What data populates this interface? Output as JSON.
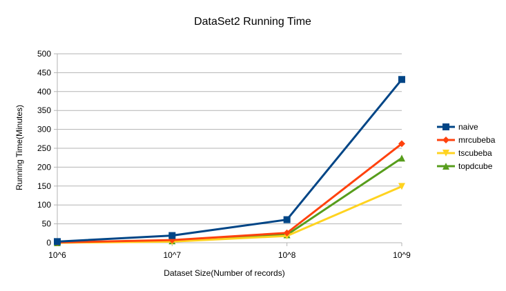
{
  "chart_data": {
    "type": "line",
    "title": "DataSet2 Running Time",
    "xlabel": "Dataset Size(Number of records)",
    "ylabel": "Running Time(Minutes)",
    "categories": [
      "10^6",
      "10^7",
      "10^8",
      "10^9"
    ],
    "ylim": [
      0,
      500
    ],
    "yticks": [
      0,
      50,
      100,
      150,
      200,
      250,
      300,
      350,
      400,
      450,
      500
    ],
    "grid": "horizontal",
    "legend_position": "right",
    "series": [
      {
        "name": "naive",
        "color": "#004586",
        "marker": "square",
        "values": [
          3,
          19,
          61,
          432
        ]
      },
      {
        "name": "mrcubeba",
        "color": "#ff420e",
        "marker": "diamond",
        "values": [
          1,
          7,
          26,
          262
        ]
      },
      {
        "name": "tscubeba",
        "color": "#ffd320",
        "marker": "triangle-down",
        "values": [
          0,
          3,
          18,
          149
        ]
      },
      {
        "name": "topdcube",
        "color": "#579d1c",
        "marker": "triangle-up",
        "values": [
          0,
          5,
          21,
          224
        ]
      }
    ]
  }
}
